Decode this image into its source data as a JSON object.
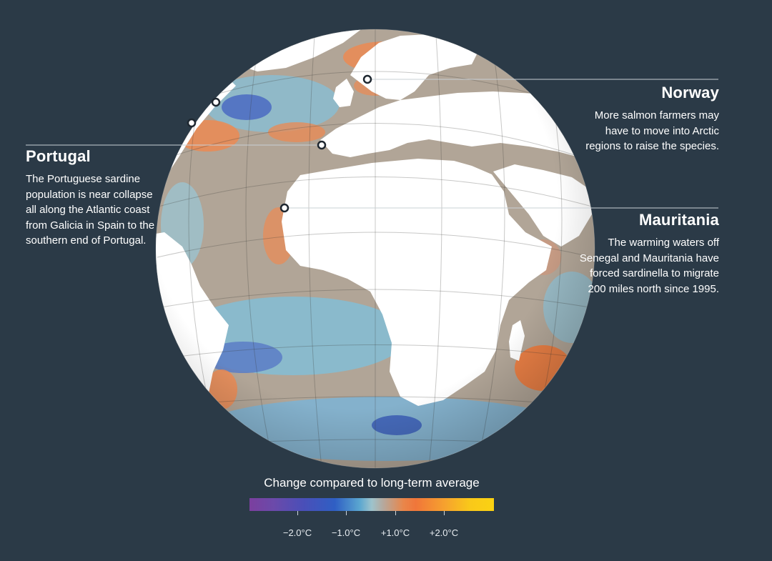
{
  "callouts": {
    "portugal": {
      "title": "Portugal",
      "body": "The Portuguese sardine population is near collapse all along the Atlantic coast from Galicia in Spain to the southern end of Portugal."
    },
    "norway": {
      "title": "Norway",
      "body": "More salmon farmers may have to move into Arctic regions to raise the species."
    },
    "mauritania": {
      "title": "Mauritania",
      "body": "The warming waters off Senegal and Mauritania have forced sardinella to migrate 200 miles north since 1995."
    }
  },
  "legend": {
    "title": "Change compared to long-term average",
    "ticks": [
      "−2.0°C",
      "−1.0°C",
      "+1.0°C",
      "+2.0°C"
    ]
  },
  "colors": {
    "background": "#2b3a47",
    "land": "#ffffff",
    "ocean_neutral": "#b1a597",
    "warm": "#ee8a4e",
    "cool": "#7fb7cf",
    "cold": "#4d6fc0",
    "marker": "#ffffff"
  }
}
